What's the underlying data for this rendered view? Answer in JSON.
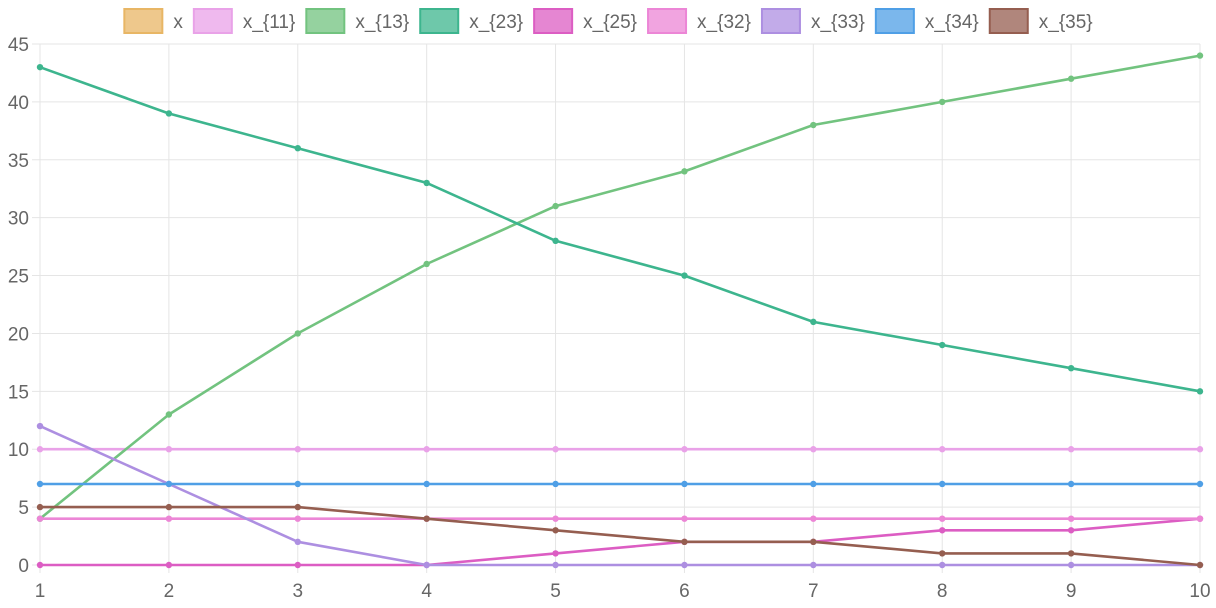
{
  "chart_data": {
    "type": "line",
    "x": [
      1,
      2,
      3,
      4,
      5,
      6,
      7,
      8,
      9,
      10
    ],
    "ylim": [
      0,
      45
    ],
    "y_ticks": [
      0,
      5,
      10,
      15,
      20,
      25,
      30,
      35,
      40,
      45
    ],
    "grid": true,
    "legend_position": "top",
    "series": [
      {
        "name": "x",
        "color": "#e8b665",
        "values": [
          null,
          null,
          null,
          null,
          null,
          null,
          null,
          null,
          null,
          null
        ]
      },
      {
        "name": "x_{11}",
        "color": "#e9a2e8",
        "values": [
          10,
          10,
          10,
          10,
          10,
          10,
          10,
          10,
          10,
          10
        ]
      },
      {
        "name": "x_{13}",
        "color": "#72c37f",
        "values": [
          4,
          13,
          20,
          26,
          31,
          34,
          38,
          40,
          42,
          44
        ]
      },
      {
        "name": "x_{23}",
        "color": "#3db58e",
        "values": [
          43,
          39,
          36,
          33,
          28,
          25,
          21,
          19,
          17,
          15
        ]
      },
      {
        "name": "x_{25}",
        "color": "#dc5dc3",
        "values": [
          0,
          0,
          0,
          0,
          1,
          2,
          2,
          3,
          3,
          4
        ]
      },
      {
        "name": "x_{32}",
        "color": "#ec86d6",
        "values": [
          4,
          4,
          4,
          4,
          4,
          4,
          4,
          4,
          4,
          4
        ]
      },
      {
        "name": "x_{33}",
        "color": "#ad8fe1",
        "values": [
          12,
          7,
          2,
          0,
          0,
          0,
          0,
          0,
          0,
          0
        ]
      },
      {
        "name": "x_{34}",
        "color": "#4f9fe6",
        "values": [
          7,
          7,
          7,
          7,
          7,
          7,
          7,
          7,
          7,
          7
        ]
      },
      {
        "name": "x_{35}",
        "color": "#955e50",
        "values": [
          5,
          5,
          5,
          4,
          3,
          2,
          2,
          1,
          1,
          0
        ]
      }
    ]
  }
}
